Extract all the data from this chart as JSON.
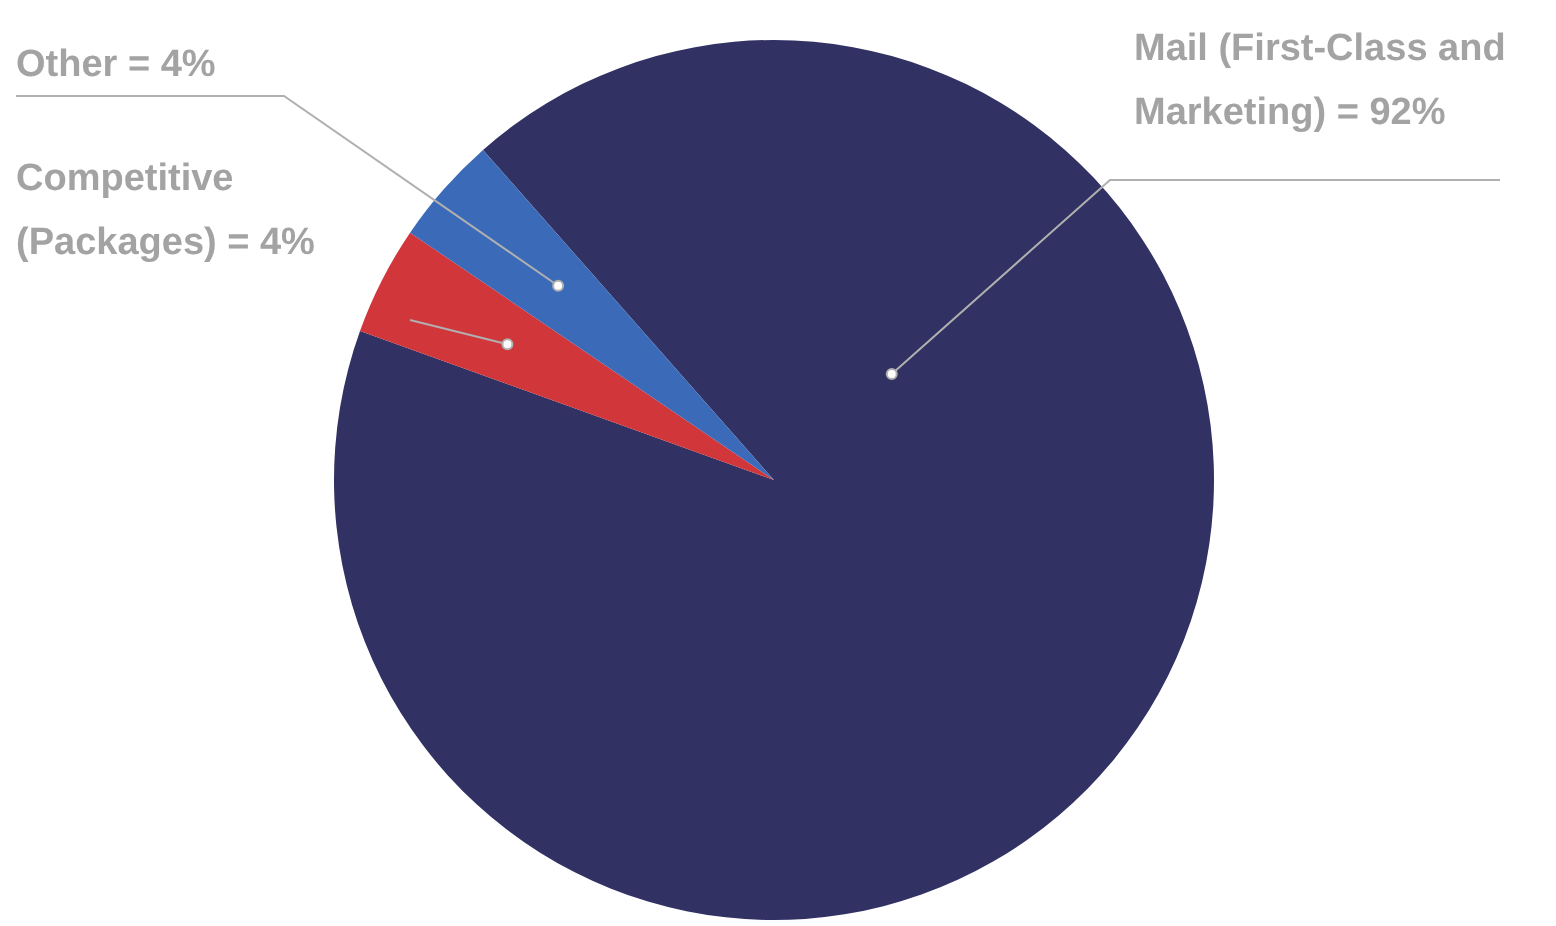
{
  "chart_data": {
    "type": "pie",
    "categories": [
      "Mail (First-Class and Marketing)",
      "Competitive (Packages)",
      "Other"
    ],
    "values": [
      92,
      4,
      4
    ],
    "value_labels": [
      "= 92%",
      "= 4%",
      "= 4%"
    ],
    "colors": [
      "#313163",
      "#d0363a",
      "#3a6ab8"
    ],
    "legend": false
  }
}
